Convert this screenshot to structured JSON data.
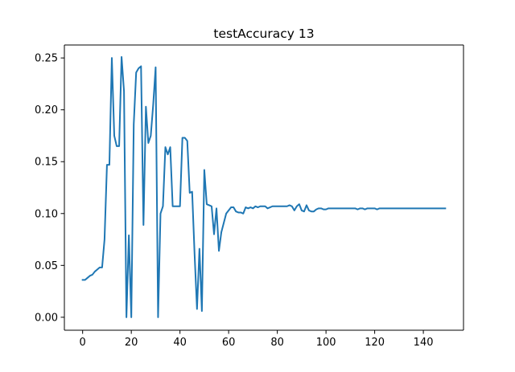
{
  "chart_data": {
    "type": "line",
    "title": "testAccuracy 13",
    "xlabel": "",
    "ylabel": "",
    "xlim": [
      -7.5,
      156.5
    ],
    "ylim": [
      -0.0125,
      0.2625
    ],
    "xticks": [
      0,
      20,
      40,
      60,
      80,
      100,
      120,
      140
    ],
    "xtick_labels": [
      "0",
      "20",
      "40",
      "60",
      "80",
      "100",
      "120",
      "140"
    ],
    "yticks": [
      0.0,
      0.05,
      0.1,
      0.15,
      0.2,
      0.25
    ],
    "ytick_labels": [
      "0.00",
      "0.05",
      "0.10",
      "0.15",
      "0.20",
      "0.25"
    ],
    "grid": false,
    "legend": "none",
    "line_color": "#1f77b4",
    "series": [
      {
        "x": [
          0,
          1,
          2,
          3,
          4,
          5,
          6,
          7,
          8,
          9,
          10,
          11,
          12,
          13,
          14,
          15,
          16,
          17,
          18,
          19,
          20,
          21,
          22,
          23,
          24,
          25,
          26,
          27,
          28,
          29,
          30,
          31,
          32,
          33,
          34,
          35,
          36,
          37,
          38,
          39,
          40,
          41,
          42,
          43,
          44,
          45,
          46,
          47,
          48,
          49,
          50,
          51,
          52,
          53,
          54,
          55,
          56,
          57,
          58,
          59,
          60,
          61,
          62,
          63,
          64,
          65,
          66,
          67,
          68,
          69,
          70,
          71,
          72,
          73,
          74,
          75,
          76,
          77,
          78,
          79,
          80,
          81,
          82,
          83,
          84,
          85,
          86,
          87,
          88,
          89,
          90,
          91,
          92,
          93,
          94,
          95,
          96,
          97,
          98,
          99,
          100,
          101,
          102,
          103,
          104,
          105,
          106,
          107,
          108,
          109,
          110,
          111,
          112,
          113,
          114,
          115,
          116,
          117,
          118,
          119,
          120,
          121,
          122,
          123,
          124,
          125,
          126,
          127,
          128,
          129,
          130,
          131,
          132,
          133,
          134,
          135,
          136,
          137,
          138,
          139,
          140,
          141,
          142,
          143,
          144,
          145,
          146,
          147,
          148,
          149
        ],
        "y": [
          0.036,
          0.036,
          0.038,
          0.04,
          0.041,
          0.044,
          0.046,
          0.048,
          0.048,
          0.075,
          0.147,
          0.147,
          0.25,
          0.175,
          0.165,
          0.165,
          0.251,
          0.218,
          0.0,
          0.079,
          0.0,
          0.186,
          0.236,
          0.24,
          0.242,
          0.089,
          0.203,
          0.168,
          0.175,
          0.205,
          0.241,
          0.0,
          0.1,
          0.107,
          0.164,
          0.157,
          0.164,
          0.107,
          0.107,
          0.107,
          0.107,
          0.173,
          0.173,
          0.17,
          0.12,
          0.121,
          0.061,
          0.008,
          0.066,
          0.006,
          0.142,
          0.109,
          0.108,
          0.107,
          0.08,
          0.105,
          0.064,
          0.082,
          0.091,
          0.1,
          0.103,
          0.106,
          0.106,
          0.102,
          0.101,
          0.101,
          0.1,
          0.106,
          0.105,
          0.106,
          0.105,
          0.107,
          0.106,
          0.107,
          0.107,
          0.107,
          0.105,
          0.106,
          0.107,
          0.107,
          0.107,
          0.107,
          0.107,
          0.107,
          0.107,
          0.108,
          0.107,
          0.103,
          0.107,
          0.109,
          0.103,
          0.102,
          0.108,
          0.103,
          0.102,
          0.102,
          0.104,
          0.105,
          0.105,
          0.104,
          0.104,
          0.105,
          0.105,
          0.105,
          0.105,
          0.105,
          0.105,
          0.105,
          0.105,
          0.105,
          0.105,
          0.105,
          0.105,
          0.104,
          0.105,
          0.105,
          0.104,
          0.105,
          0.105,
          0.105,
          0.105,
          0.104,
          0.105,
          0.105,
          0.105,
          0.105,
          0.105,
          0.105,
          0.105,
          0.105,
          0.105,
          0.105,
          0.105,
          0.105,
          0.105,
          0.105,
          0.105,
          0.105,
          0.105,
          0.105,
          0.105,
          0.105,
          0.105,
          0.105,
          0.105,
          0.105,
          0.105,
          0.105,
          0.105,
          0.105
        ]
      }
    ]
  }
}
